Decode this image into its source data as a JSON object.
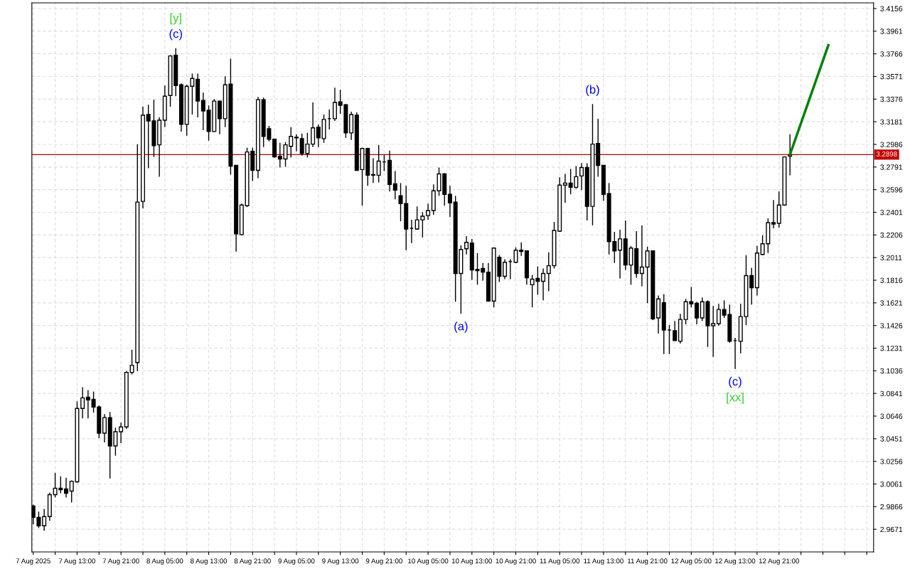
{
  "chart_data": {
    "type": "candlestick",
    "x": [
      "2025-08-07T05:00",
      "2025-08-07T06:00",
      "2025-08-07T07:00",
      "2025-08-07T08:00",
      "2025-08-07T09:00",
      "2025-08-07T10:00",
      "2025-08-07T11:00",
      "2025-08-07T12:00",
      "2025-08-07T13:00",
      "2025-08-07T14:00",
      "2025-08-07T15:00",
      "2025-08-07T16:00",
      "2025-08-07T17:00",
      "2025-08-07T18:00",
      "2025-08-07T19:00",
      "2025-08-07T20:00",
      "2025-08-07T21:00",
      "2025-08-07T22:00",
      "2025-08-07T23:00",
      "2025-08-08T00:00",
      "2025-08-08T01:00",
      "2025-08-08T02:00",
      "2025-08-08T03:00",
      "2025-08-08T04:00",
      "2025-08-08T05:00",
      "2025-08-08T06:00",
      "2025-08-08T07:00",
      "2025-08-08T08:00",
      "2025-08-08T09:00",
      "2025-08-08T10:00",
      "2025-08-08T11:00",
      "2025-08-08T12:00",
      "2025-08-08T13:00",
      "2025-08-08T14:00",
      "2025-08-08T15:00",
      "2025-08-08T16:00",
      "2025-08-08T17:00",
      "2025-08-08T18:00",
      "2025-08-08T19:00",
      "2025-08-08T20:00",
      "2025-08-08T21:00",
      "2025-08-08T22:00",
      "2025-08-08T23:00",
      "2025-08-09T00:00",
      "2025-08-09T01:00",
      "2025-08-09T02:00",
      "2025-08-09T03:00",
      "2025-08-09T04:00",
      "2025-08-09T05:00",
      "2025-08-09T06:00",
      "2025-08-09T07:00",
      "2025-08-09T08:00",
      "2025-08-09T09:00",
      "2025-08-09T10:00",
      "2025-08-09T11:00",
      "2025-08-09T12:00",
      "2025-08-09T13:00",
      "2025-08-09T14:00",
      "2025-08-09T15:00",
      "2025-08-09T16:00",
      "2025-08-09T17:00",
      "2025-08-09T18:00",
      "2025-08-09T19:00",
      "2025-08-09T20:00",
      "2025-08-09T21:00",
      "2025-08-09T22:00",
      "2025-08-09T23:00",
      "2025-08-10T00:00",
      "2025-08-10T01:00",
      "2025-08-10T02:00",
      "2025-08-10T03:00",
      "2025-08-10T04:00",
      "2025-08-10T05:00",
      "2025-08-10T06:00",
      "2025-08-10T07:00",
      "2025-08-10T08:00",
      "2025-08-10T09:00",
      "2025-08-10T10:00",
      "2025-08-10T11:00",
      "2025-08-10T12:00",
      "2025-08-10T13:00",
      "2025-08-10T14:00",
      "2025-08-10T15:00",
      "2025-08-10T16:00",
      "2025-08-10T17:00",
      "2025-08-10T18:00",
      "2025-08-10T19:00",
      "2025-08-10T20:00",
      "2025-08-10T21:00",
      "2025-08-10T22:00",
      "2025-08-10T23:00",
      "2025-08-11T00:00",
      "2025-08-11T01:00",
      "2025-08-11T02:00",
      "2025-08-11T03:00",
      "2025-08-11T04:00",
      "2025-08-11T05:00",
      "2025-08-11T06:00",
      "2025-08-11T07:00",
      "2025-08-11T08:00",
      "2025-08-11T09:00",
      "2025-08-11T10:00",
      "2025-08-11T11:00",
      "2025-08-11T12:00",
      "2025-08-11T13:00",
      "2025-08-11T14:00",
      "2025-08-11T15:00",
      "2025-08-11T16:00",
      "2025-08-11T17:00",
      "2025-08-11T18:00",
      "2025-08-11T19:00",
      "2025-08-11T20:00",
      "2025-08-11T21:00",
      "2025-08-11T22:00",
      "2025-08-11T23:00",
      "2025-08-12T00:00",
      "2025-08-12T01:00",
      "2025-08-12T02:00",
      "2025-08-12T03:00",
      "2025-08-12T04:00",
      "2025-08-12T05:00",
      "2025-08-12T06:00",
      "2025-08-12T07:00",
      "2025-08-12T08:00",
      "2025-08-12T09:00",
      "2025-08-12T10:00",
      "2025-08-12T11:00",
      "2025-08-12T12:00",
      "2025-08-12T13:00",
      "2025-08-12T14:00",
      "2025-08-12T15:00",
      "2025-08-12T16:00",
      "2025-08-12T17:00",
      "2025-08-12T18:00",
      "2025-08-12T19:00",
      "2025-08-12T20:00",
      "2025-08-12T21:00",
      "2025-08-12T22:00",
      "2025-08-12T23:00"
    ],
    "ohlc": [
      [
        2.9872,
        2.9884,
        2.9714,
        2.9774
      ],
      [
        2.9774,
        2.9823,
        2.9683,
        2.9701
      ],
      [
        2.9701,
        2.9847,
        2.9659,
        2.9781
      ],
      [
        2.9781,
        2.9987,
        2.9744,
        2.9969
      ],
      [
        2.9969,
        3.0158,
        2.9945,
        3.0024
      ],
      [
        3.0024,
        3.0127,
        2.9981,
        3.0012
      ],
      [
        3.0018,
        3.0115,
        2.9945,
        2.9981
      ],
      [
        3.0,
        3.0091,
        2.9902,
        3.0085
      ],
      [
        3.0079,
        3.0772,
        3.0073,
        3.0712
      ],
      [
        3.0712,
        3.0894,
        3.0626,
        3.0803
      ],
      [
        3.0809,
        3.087,
        3.0626,
        3.0785
      ],
      [
        3.0791,
        3.0858,
        3.0675,
        3.0724
      ],
      [
        3.0724,
        3.0736,
        3.0456,
        3.0499
      ],
      [
        3.0499,
        3.0663,
        3.042,
        3.0633
      ],
      [
        3.0633,
        3.0681,
        3.0109,
        3.0389
      ],
      [
        3.0389,
        3.0547,
        3.0304,
        3.0511
      ],
      [
        3.0511,
        3.059,
        3.0413,
        3.0553
      ],
      [
        3.0553,
        3.1034,
        3.0535,
        3.1022
      ],
      [
        3.1022,
        3.1217,
        3.1004,
        3.1083
      ],
      [
        3.1107,
        3.2988,
        3.1034,
        3.2489
      ],
      [
        3.2495,
        3.331,
        3.2434,
        3.3237
      ],
      [
        3.3243,
        3.3328,
        3.2781,
        3.3188
      ],
      [
        3.3188,
        3.3371,
        3.2878,
        3.2975
      ],
      [
        3.2982,
        3.3219,
        3.2708,
        3.3194
      ],
      [
        3.3194,
        3.3493,
        3.3134,
        3.3401
      ],
      [
        3.3407,
        3.3754,
        3.331,
        3.3748
      ],
      [
        3.3754,
        3.3815,
        3.3401,
        3.3493
      ],
      [
        3.3499,
        3.3511,
        3.3097,
        3.3158
      ],
      [
        3.3158,
        3.3499,
        3.3061,
        3.3487
      ],
      [
        3.3487,
        3.3596,
        3.3243,
        3.3554
      ],
      [
        3.3547,
        3.3596,
        3.3219,
        3.3359
      ],
      [
        3.3365,
        3.3432,
        3.3109,
        3.3274
      ],
      [
        3.328,
        3.3322,
        3.3018,
        3.3097
      ],
      [
        3.3097,
        3.3377,
        3.3091,
        3.3359
      ],
      [
        3.3359,
        3.3365,
        3.3073,
        3.3207
      ],
      [
        3.3207,
        3.3572,
        3.3134,
        3.3499
      ],
      [
        3.3505,
        3.3724,
        3.2726,
        3.2799
      ],
      [
        3.2805,
        3.2805,
        3.2063,
        3.2215
      ],
      [
        3.2209,
        3.2476,
        3.2203,
        3.2464
      ],
      [
        3.2458,
        3.2957,
        3.2446,
        3.2921
      ],
      [
        3.2927,
        3.2957,
        3.2671,
        3.2762
      ],
      [
        3.2762,
        3.3395,
        3.2695,
        3.3371
      ],
      [
        3.3371,
        3.3389,
        3.2963,
        3.3055
      ],
      [
        3.3121,
        3.3146,
        3.3012,
        3.303
      ],
      [
        3.303,
        3.3036,
        3.2872,
        3.2878
      ],
      [
        3.2884,
        3.3,
        3.2787,
        3.286
      ],
      [
        3.286,
        3.3006,
        3.2793,
        3.2982
      ],
      [
        3.2969,
        3.3134,
        3.2872,
        3.3055
      ],
      [
        3.3042,
        3.3073,
        3.2927,
        3.3048
      ],
      [
        3.3036,
        3.3079,
        3.289,
        3.2908
      ],
      [
        3.2908,
        3.3085,
        3.2872,
        3.2988
      ],
      [
        3.2988,
        3.3347,
        3.2963,
        3.3128
      ],
      [
        3.3134,
        3.3158,
        3.2963,
        3.3042
      ],
      [
        3.3036,
        3.3243,
        3.3,
        3.3201
      ],
      [
        3.3207,
        3.3286,
        3.3115,
        3.3207
      ],
      [
        3.3207,
        3.3474,
        3.3188,
        3.3347
      ],
      [
        3.3353,
        3.3456,
        3.3249,
        3.3322
      ],
      [
        3.3328,
        3.3334,
        3.3042,
        3.3085
      ],
      [
        3.3085,
        3.3268,
        3.3024,
        3.3243
      ],
      [
        3.3237,
        3.3261,
        3.2762,
        3.2762
      ],
      [
        3.2769,
        3.2957,
        3.2458,
        3.2951
      ],
      [
        3.2951,
        3.2957,
        3.2629,
        3.272
      ],
      [
        3.2726,
        3.2866,
        3.2653,
        3.272
      ],
      [
        3.272,
        3.2982,
        3.2659,
        3.2842
      ],
      [
        3.2835,
        3.2896,
        3.2756,
        3.2835
      ],
      [
        3.2848,
        3.2933,
        3.258,
        3.2641
      ],
      [
        3.2647,
        3.2756,
        3.2513,
        3.2592
      ],
      [
        3.2543,
        3.2653,
        3.2324,
        3.2476
      ],
      [
        3.2476,
        3.2629,
        3.2075,
        3.2257
      ],
      [
        3.2263,
        3.2336,
        3.2136,
        3.2263
      ],
      [
        3.2257,
        3.2452,
        3.2251,
        3.2336
      ],
      [
        3.2336,
        3.2403,
        3.2184,
        3.2367
      ],
      [
        3.2373,
        3.2476,
        3.2336,
        3.2416
      ],
      [
        3.2416,
        3.2641,
        3.2379,
        3.2586
      ],
      [
        3.2586,
        3.2787,
        3.2543,
        3.2732
      ],
      [
        3.2732,
        3.2738,
        3.2458,
        3.2556
      ],
      [
        3.2556,
        3.2629,
        3.2361,
        3.2482
      ],
      [
        3.2489,
        3.2543,
        3.1631,
        3.1874
      ],
      [
        3.1874,
        3.2117,
        3.1527,
        3.2081
      ],
      [
        3.2087,
        3.2196,
        3.2038,
        3.2142
      ],
      [
        3.2136,
        3.2172,
        3.1819,
        3.1904
      ],
      [
        3.191,
        3.205,
        3.1777,
        3.1898
      ],
      [
        3.1917,
        3.1965,
        3.1813,
        3.1886
      ],
      [
        3.1886,
        3.1965,
        3.1631,
        3.1637
      ],
      [
        3.1637,
        3.2093,
        3.1582,
        3.2093
      ],
      [
        3.2014,
        3.2032,
        3.1801,
        3.185
      ],
      [
        3.185,
        3.1996,
        3.1825,
        3.1971
      ],
      [
        3.1977,
        3.1996,
        3.1825,
        3.1977
      ],
      [
        3.1971,
        3.2099,
        3.1965,
        3.2075
      ],
      [
        3.2075,
        3.2142,
        3.2026,
        3.2063
      ],
      [
        3.2069,
        3.2069,
        3.1777,
        3.1837
      ],
      [
        3.1777,
        3.1862,
        3.1582,
        3.1825
      ],
      [
        3.1831,
        3.1935,
        3.1691,
        3.1807
      ],
      [
        3.1807,
        3.1917,
        3.1643,
        3.1874
      ],
      [
        3.1874,
        3.2057,
        3.1722,
        3.1941
      ],
      [
        3.1941,
        3.2318,
        3.1917,
        3.2245
      ],
      [
        3.2239,
        3.2702,
        3.2233,
        3.2635
      ],
      [
        3.2635,
        3.2732,
        3.2482,
        3.2653
      ],
      [
        3.2653,
        3.2775,
        3.2556,
        3.2616
      ],
      [
        3.2616,
        3.2799,
        3.2604,
        3.2708
      ],
      [
        3.2714,
        3.2823,
        3.2592,
        3.2787
      ],
      [
        3.2787,
        3.2823,
        3.233,
        3.2452
      ],
      [
        3.2452,
        3.3334,
        3.2288,
        3.2988
      ],
      [
        3.2994,
        3.3207,
        3.2708,
        3.2805
      ],
      [
        3.2805,
        3.2805,
        3.2501,
        3.2556
      ],
      [
        3.2562,
        3.2653,
        3.2038,
        3.2148
      ],
      [
        3.2148,
        3.2233,
        3.1965,
        3.2069
      ],
      [
        3.2075,
        3.2251,
        3.1831,
        3.2172
      ],
      [
        3.2172,
        3.233,
        3.1904,
        3.1947
      ],
      [
        3.1947,
        3.2111,
        3.1777,
        3.2093
      ],
      [
        3.2087,
        3.2239,
        3.1837,
        3.1874
      ],
      [
        3.1874,
        3.2288,
        3.1764,
        3.1929
      ],
      [
        3.1929,
        3.2105,
        3.1618,
        3.2069
      ],
      [
        3.2069,
        3.2069,
        3.1472,
        3.1484
      ],
      [
        3.1491,
        3.1685,
        3.1357,
        3.1655
      ],
      [
        3.1624,
        3.1697,
        3.118,
        3.1387
      ],
      [
        3.1387,
        3.143,
        3.118,
        3.1387
      ],
      [
        3.1381,
        3.1466,
        3.1296,
        3.1296
      ],
      [
        3.129,
        3.1527,
        3.1271,
        3.1478
      ],
      [
        3.1478,
        3.1655,
        3.1436,
        3.1631
      ],
      [
        3.1631,
        3.1758,
        3.1582,
        3.1612
      ],
      [
        3.1618,
        3.1631,
        3.1436,
        3.1491
      ],
      [
        3.1491,
        3.1667,
        3.1466,
        3.1631
      ],
      [
        3.1631,
        3.1643,
        3.1241,
        3.1424
      ],
      [
        3.1424,
        3.1594,
        3.1156,
        3.1442
      ],
      [
        3.1442,
        3.1612,
        3.1424,
        3.1564
      ],
      [
        3.1564,
        3.1643,
        3.1491,
        3.1515
      ],
      [
        3.1521,
        3.1606,
        3.1278,
        3.129
      ],
      [
        3.1296,
        3.132,
        3.1052,
        3.1296
      ],
      [
        3.129,
        3.1612,
        3.1186,
        3.1503
      ],
      [
        3.1503,
        3.2032,
        3.143,
        3.1856
      ],
      [
        3.1856,
        3.1923,
        3.1606,
        3.1752
      ],
      [
        3.1752,
        3.2111,
        3.1685,
        3.205
      ],
      [
        3.2038,
        3.2203,
        3.2032,
        3.213
      ],
      [
        3.213,
        3.2349,
        3.205,
        3.2312
      ],
      [
        3.2312,
        3.2507,
        3.2263,
        3.23
      ],
      [
        3.2306,
        3.258,
        3.227,
        3.2464
      ],
      [
        3.2464,
        3.2884,
        3.2458,
        3.2878
      ],
      [
        3.2884,
        3.3073,
        3.272,
        3.2898
      ]
    ],
    "color": "#000000",
    "series": [
      {
        "type": "line",
        "color": "#008000",
        "x": [
          "2025-08-12T23:00",
          "2025-08-13T06:00"
        ],
        "values": [
          3.2898,
          3.384
        ]
      }
    ],
    "annotations": [
      {
        "text": "(c)",
        "x": "2025-08-08T07:00",
        "y": 3.3815
      },
      {
        "text": "[y]",
        "x": "2025-08-08T07:00",
        "y": 3.3815
      },
      {
        "text": "(a)",
        "x": "2025-08-10T11:00",
        "y": 3.1527
      },
      {
        "text": "(b)",
        "x": "2025-08-11T11:00",
        "y": 3.3334
      },
      {
        "text": "(c)",
        "x": "2025-08-12T13:00",
        "y": 3.1052
      },
      {
        "text": "[xx]",
        "x": "2025-08-12T13:00",
        "y": 3.1052
      }
    ],
    "ref_lines": [
      {
        "axis": "y",
        "value": 3.2898,
        "label": "3.2898",
        "color": "#c00000"
      }
    ],
    "xlim": [
      "2025-08-07T04:45",
      "2025-08-13T14:15"
    ],
    "xticks": [
      {
        "value": "2025-08-07T05:00",
        "label": "7 Aug 2025"
      },
      {
        "value": "2025-08-07T09:00",
        "label": null
      },
      {
        "value": "2025-08-07T13:00",
        "label": "7 Aug 13:00"
      },
      {
        "value": "2025-08-07T17:00",
        "label": null
      },
      {
        "value": "2025-08-07T21:00",
        "label": "7 Aug 21:00"
      },
      {
        "value": "2025-08-08T01:00",
        "label": null
      },
      {
        "value": "2025-08-08T05:00",
        "label": "8 Aug 05:00"
      },
      {
        "value": "2025-08-08T09:00",
        "label": null
      },
      {
        "value": "2025-08-08T13:00",
        "label": "8 Aug 13:00"
      },
      {
        "value": "2025-08-08T17:00",
        "label": null
      },
      {
        "value": "2025-08-08T21:00",
        "label": "8 Aug 21:00"
      },
      {
        "value": "2025-08-09T01:00",
        "label": null
      },
      {
        "value": "2025-08-09T05:00",
        "label": "9 Aug 05:00"
      },
      {
        "value": "2025-08-09T09:00",
        "label": null
      },
      {
        "value": "2025-08-09T13:00",
        "label": "9 Aug 13:00"
      },
      {
        "value": "2025-08-09T17:00",
        "label": null
      },
      {
        "value": "2025-08-09T21:00",
        "label": "9 Aug 21:00"
      },
      {
        "value": "2025-08-10T01:00",
        "label": null
      },
      {
        "value": "2025-08-10T05:00",
        "label": "10 Aug 05:00"
      },
      {
        "value": "2025-08-10T09:00",
        "label": null
      },
      {
        "value": "2025-08-10T13:00",
        "label": "10 Aug 13:00"
      },
      {
        "value": "2025-08-10T17:00",
        "label": null
      },
      {
        "value": "2025-08-10T21:00",
        "label": "10 Aug 21:00"
      },
      {
        "value": "2025-08-11T01:00",
        "label": null
      },
      {
        "value": "2025-08-11T05:00",
        "label": "11 Aug 05:00"
      },
      {
        "value": "2025-08-11T09:00",
        "label": null
      },
      {
        "value": "2025-08-11T13:00",
        "label": "11 Aug 13:00"
      },
      {
        "value": "2025-08-11T17:00",
        "label": null
      },
      {
        "value": "2025-08-11T21:00",
        "label": "11 Aug 21:00"
      },
      {
        "value": "2025-08-12T01:00",
        "label": null
      },
      {
        "value": "2025-08-12T05:00",
        "label": "12 Aug 05:00"
      },
      {
        "value": "2025-08-12T09:00",
        "label": null
      },
      {
        "value": "2025-08-12T13:00",
        "label": "12 Aug 13:00"
      },
      {
        "value": "2025-08-12T17:00",
        "label": null
      },
      {
        "value": "2025-08-12T21:00",
        "label": "12 Aug 21:00"
      },
      {
        "value": "2025-08-13T01:00",
        "label": null
      },
      {
        "value": "2025-08-13T05:00",
        "label": null
      },
      {
        "value": "2025-08-13T09:00",
        "label": null
      },
      {
        "value": "2025-08-13T13:00",
        "label": null
      }
    ],
    "ylim": [
      2.9476,
      3.4205
    ],
    "yticks": [
      2.9671,
      2.9866,
      3.0061,
      3.0256,
      3.0451,
      3.0646,
      3.0841,
      3.1036,
      3.1231,
      3.1426,
      3.1621,
      3.1816,
      3.2011,
      3.2206,
      3.2401,
      3.2596,
      3.2791,
      3.2986,
      3.3181,
      3.3376,
      3.3571,
      3.3766,
      3.3961,
      3.4156
    ],
    "grid": true
  }
}
